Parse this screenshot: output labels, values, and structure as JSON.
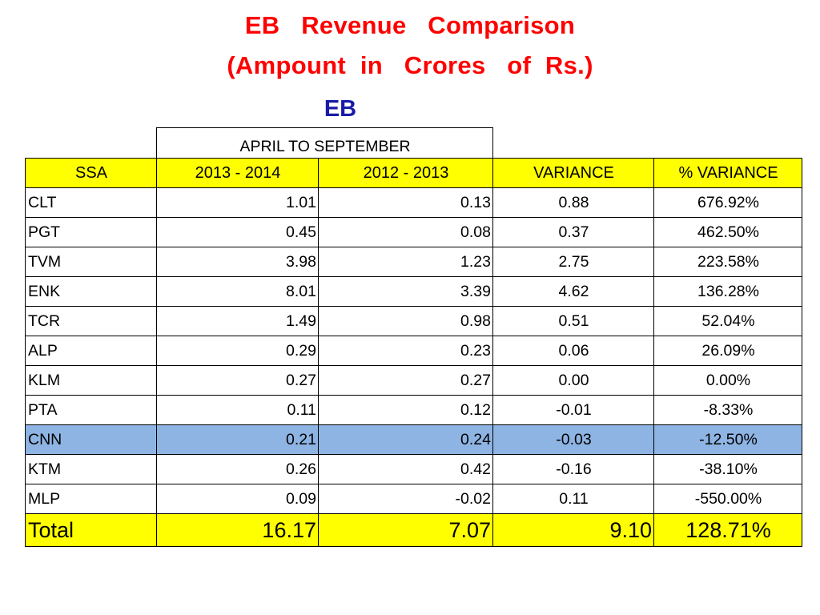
{
  "title_line1": "EB   Revenue   Comparison",
  "title_line2": "(Ampount  in   Crores   of  Rs.)",
  "subtitle": "EB",
  "period_header": "APRIL    TO    SEPTEMBER",
  "columns": [
    "SSA",
    "2013 - 2014",
    "2012 - 2013",
    "VARIANCE",
    "%  VARIANCE"
  ],
  "rows": [
    {
      "ssa": "CLT",
      "y2013": "1.01",
      "y2012": "0.13",
      "variance": "0.88",
      "pct": "676.92%"
    },
    {
      "ssa": "PGT",
      "y2013": "0.45",
      "y2012": "0.08",
      "variance": "0.37",
      "pct": "462.50%"
    },
    {
      "ssa": "TVM",
      "y2013": "3.98",
      "y2012": "1.23",
      "variance": "2.75",
      "pct": "223.58%"
    },
    {
      "ssa": "ENK",
      "y2013": "8.01",
      "y2012": "3.39",
      "variance": "4.62",
      "pct": "136.28%"
    },
    {
      "ssa": "TCR",
      "y2013": "1.49",
      "y2012": "0.98",
      "variance": "0.51",
      "pct": "52.04%"
    },
    {
      "ssa": "ALP",
      "y2013": "0.29",
      "y2012": "0.23",
      "variance": "0.06",
      "pct": "26.09%"
    },
    {
      "ssa": "KLM",
      "y2013": "0.27",
      "y2012": "0.27",
      "variance": "0.00",
      "pct": "0.00%"
    },
    {
      "ssa": "PTA",
      "y2013": "0.11",
      "y2012": "0.12",
      "variance": "-0.01",
      "pct": "-8.33%"
    },
    {
      "ssa": "CNN",
      "y2013": "0.21",
      "y2012": "0.24",
      "variance": "-0.03",
      "pct": "-12.50%",
      "highlight": true
    },
    {
      "ssa": "KTM",
      "y2013": "0.26",
      "y2012": "0.42",
      "variance": "-0.16",
      "pct": "-38.10%"
    },
    {
      "ssa": "MLP",
      "y2013": "0.09",
      "y2012": "-0.02",
      "variance": "0.11",
      "pct": "-550.00%"
    }
  ],
  "total": {
    "ssa": "Total",
    "y2013": "16.17",
    "y2012": "7.07",
    "variance": "9.10",
    "pct": "128.71%"
  },
  "colors": {
    "title": "#ff0000",
    "subtitle": "#1a1aa8",
    "header_bg": "#ffff00",
    "highlight_bg": "#8eb4e3"
  }
}
